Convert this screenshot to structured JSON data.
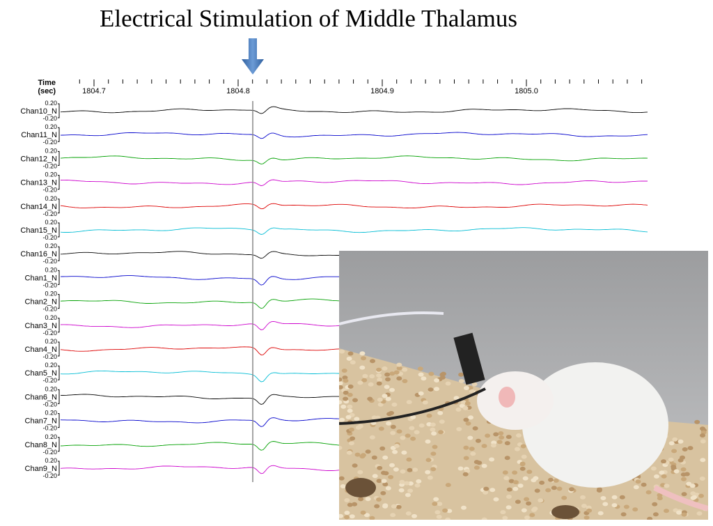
{
  "title": "Electrical Stimulation of Middle Thalamus",
  "time_axis": {
    "label": "Time",
    "unit": "(sec)",
    "ticks": [
      "1804.7",
      "1804.8",
      "1804.9",
      "1805.0"
    ]
  },
  "scale": {
    "top": "0.20",
    "bottom": "-0.20"
  },
  "channels": [
    {
      "name": "Chan10_N",
      "color": "#000000"
    },
    {
      "name": "Chan11_N",
      "color": "#0000cc"
    },
    {
      "name": "Chan12_N",
      "color": "#00a000"
    },
    {
      "name": "Chan13_N",
      "color": "#cc00cc"
    },
    {
      "name": "Chan14_N",
      "color": "#dd0000"
    },
    {
      "name": "Chan15_N",
      "color": "#00bcd4"
    },
    {
      "name": "Chan16_N",
      "color": "#000000"
    },
    {
      "name": "Chan1_N",
      "color": "#0000cc"
    },
    {
      "name": "Chan2_N",
      "color": "#00a000"
    },
    {
      "name": "Chan3_N",
      "color": "#cc00cc"
    },
    {
      "name": "Chan4_N",
      "color": "#dd0000"
    },
    {
      "name": "Chan5_N",
      "color": "#00bcd4"
    },
    {
      "name": "Chan6_N",
      "color": "#000000"
    },
    {
      "name": "Chan7_N",
      "color": "#0000cc"
    },
    {
      "name": "Chan8_N",
      "color": "#00a000"
    },
    {
      "name": "Chan9_N",
      "color": "#cc00cc"
    }
  ]
}
